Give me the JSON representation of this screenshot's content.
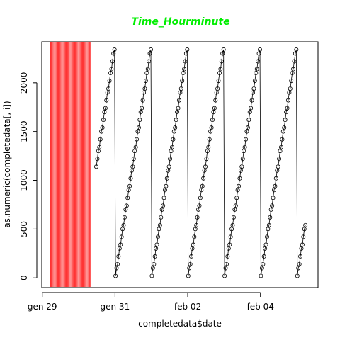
{
  "chart_data": {
    "type": "scatter",
    "title": "Time_Hourminute",
    "title_color": "#00ee00",
    "xlabel": "completedata$date",
    "ylabel": "as.numeric(completedata[, i])",
    "x_ticks": [
      {
        "date": "2015-01-29",
        "label": "gen 29"
      },
      {
        "date": "2015-01-31",
        "label": "gen 31"
      },
      {
        "date": "2015-02-02",
        "label": "feb 02"
      },
      {
        "date": "2015-02-04",
        "label": "feb 04"
      }
    ],
    "y_ticks": [
      0,
      500,
      1000,
      1500,
      2000
    ],
    "xlim": [
      "2015-01-28T23:40",
      "2015-02-05T14:00"
    ],
    "ylim": [
      -100,
      2420
    ],
    "highlight_band": {
      "start": "2015-01-29T05:00",
      "end": "2015-01-30T07:40",
      "color": "#ff3333"
    },
    "point_style": "open-circle",
    "connect_line": true,
    "start": "2015-01-30T11:40",
    "end": "2015-02-05T06:00",
    "interval_minutes": 40
  }
}
